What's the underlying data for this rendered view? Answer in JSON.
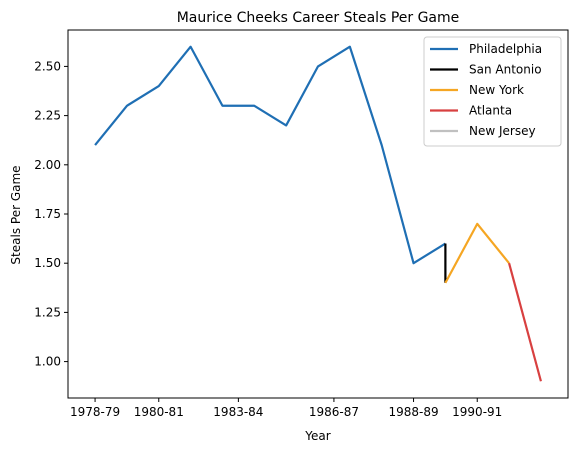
{
  "chart_data": {
    "type": "line",
    "title": "Maurice Cheeks Career Steals Per Game",
    "xlabel": "Year",
    "ylabel": "Steals Per Game",
    "x_tick_labels": [
      "1978-79",
      "1980-81",
      "1983-84",
      "1986-87",
      "1988-89",
      "1990-91"
    ],
    "x_tick_positions": [
      0,
      2,
      4.5,
      7.5,
      10,
      12
    ],
    "y_ticks": [
      1.0,
      1.25,
      1.5,
      1.75,
      2.0,
      2.25,
      2.5
    ],
    "y_tick_labels": [
      "1.00",
      "1.25",
      "1.50",
      "1.75",
      "2.00",
      "2.25",
      "2.50"
    ],
    "xlim": [
      -0.85,
      14.85
    ],
    "ylim": [
      0.815,
      2.685
    ],
    "legend_position": "top-right",
    "series": [
      {
        "name": "Philadelphia",
        "color": "#1f6fb4",
        "x": [
          0,
          1,
          2,
          3,
          4,
          5,
          6,
          7,
          8,
          9,
          10,
          11
        ],
        "y": [
          2.1,
          2.3,
          2.4,
          2.6,
          2.3,
          2.3,
          2.2,
          2.5,
          2.6,
          2.1,
          1.5,
          1.6
        ]
      },
      {
        "name": "San Antonio",
        "color": "#000000",
        "x": [
          11,
          11
        ],
        "y": [
          1.6,
          1.4
        ]
      },
      {
        "name": "New York",
        "color": "#f5a623",
        "x": [
          11,
          12,
          13
        ],
        "y": [
          1.4,
          1.7,
          1.5
        ]
      },
      {
        "name": "Atlanta",
        "color": "#d84040",
        "x": [
          13,
          14
        ],
        "y": [
          1.5,
          0.9
        ]
      },
      {
        "name": "New Jersey",
        "color": "#c0c0c0",
        "x": [],
        "y": []
      }
    ]
  }
}
